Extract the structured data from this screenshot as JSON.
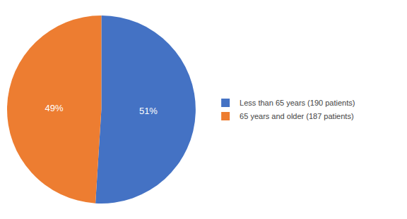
{
  "chart_data": {
    "type": "pie",
    "categories": [
      "Less than 65 years (190 patients)",
      "65 years and older (187 patients)"
    ],
    "values": [
      51,
      49
    ],
    "value_labels": [
      "51%",
      "49%"
    ],
    "data_labels": true,
    "colors": [
      "#4472C4",
      "#ED7D31"
    ],
    "legend": "right"
  }
}
